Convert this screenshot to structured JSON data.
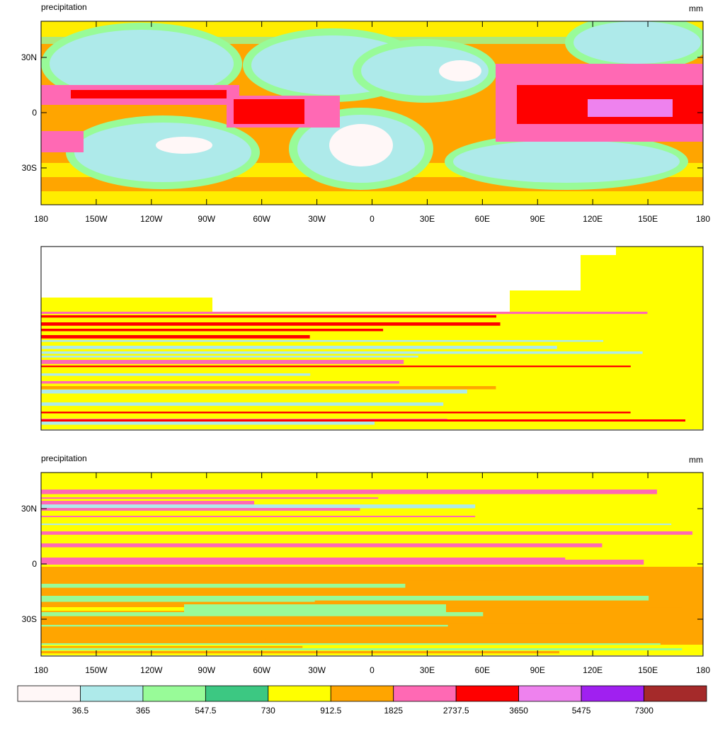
{
  "panels": [
    {
      "title": "precipitation",
      "units": "mm",
      "x_labels": [
        "180",
        "150W",
        "120W",
        "90W",
        "60W",
        "30W",
        "0",
        "30E",
        "60E",
        "90E",
        "120E",
        "150E",
        "180"
      ],
      "y_labels": [
        "30N",
        "0",
        "30S"
      ]
    },
    {},
    {
      "title": "precipitation",
      "units": "mm",
      "x_labels": [
        "180",
        "150W",
        "120W",
        "90W",
        "60W",
        "30W",
        "0",
        "30E",
        "60E",
        "90E",
        "120E",
        "150E",
        "180"
      ],
      "y_labels": [
        "30N",
        "0",
        "30S"
      ]
    }
  ],
  "colorbar": {
    "colors": [
      "#fff7f7",
      "#aeeaea",
      "#98fb98",
      "#3cc882",
      "#ffff00",
      "#ffa500",
      "#ff69b4",
      "#ff0000",
      "#ee82ee",
      "#a020f0",
      "#a52a2a"
    ],
    "labels": [
      "36.5",
      "365",
      "547.5",
      "730",
      "912.5",
      "1825",
      "2737.5",
      "3650",
      "5475",
      "7300"
    ]
  }
}
